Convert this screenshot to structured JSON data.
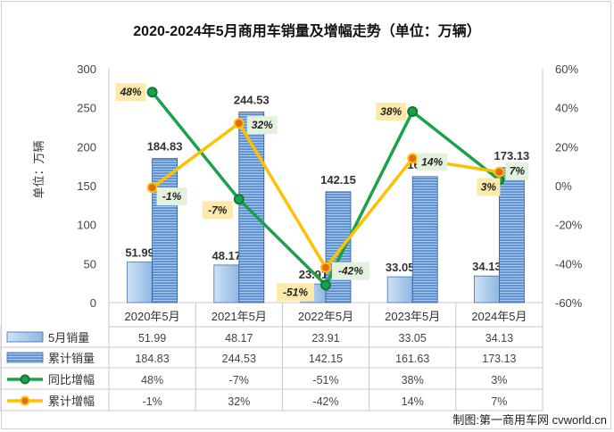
{
  "chart_data": {
    "type": "bar",
    "title": "2020-2024年5月商用车销量及增幅走势（单位：万辆）",
    "ylabel": "单位：万辆",
    "ylim": [
      0,
      300
    ],
    "y_ticks": [
      0,
      50,
      100,
      150,
      200,
      250,
      300
    ],
    "y2lim": [
      -60,
      60
    ],
    "y2_ticks": [
      "-60%",
      "-40%",
      "-20%",
      "0%",
      "20%",
      "40%",
      "60%"
    ],
    "categories": [
      "2020年5月",
      "2021年5月",
      "2022年5月",
      "2023年5月",
      "2024年5月"
    ],
    "series": [
      {
        "name": "5月销量",
        "type": "bar",
        "axis": "left",
        "values": [
          51.99,
          48.17,
          23.91,
          33.05,
          34.13
        ],
        "labels": [
          "51.99",
          "48.17",
          "23.91",
          "33.05",
          "34.13"
        ],
        "color": "#9dc3e6"
      },
      {
        "name": "累计销量",
        "type": "bar",
        "axis": "left",
        "values": [
          184.83,
          244.53,
          142.15,
          161.63,
          173.13
        ],
        "labels": [
          "184.83",
          "244.53",
          "142.15",
          "161.63",
          "173.13"
        ],
        "color": "#4f81bd"
      },
      {
        "name": "同比增幅",
        "type": "line",
        "axis": "right",
        "values": [
          48,
          -7,
          -51,
          38,
          3
        ],
        "labels": [
          "48%",
          "-7%",
          "-51%",
          "38%",
          "3%"
        ],
        "color": "#1aa24a"
      },
      {
        "name": "累计增幅",
        "type": "line",
        "axis": "right",
        "values": [
          -1,
          32,
          -42,
          14,
          7
        ],
        "labels": [
          "-1%",
          "32%",
          "-42%",
          "14%",
          "7%"
        ],
        "color": "#ffc000"
      }
    ],
    "grid": false,
    "legend": "data-table"
  },
  "credit": "制图:第一商用车网 cvworld.cn"
}
